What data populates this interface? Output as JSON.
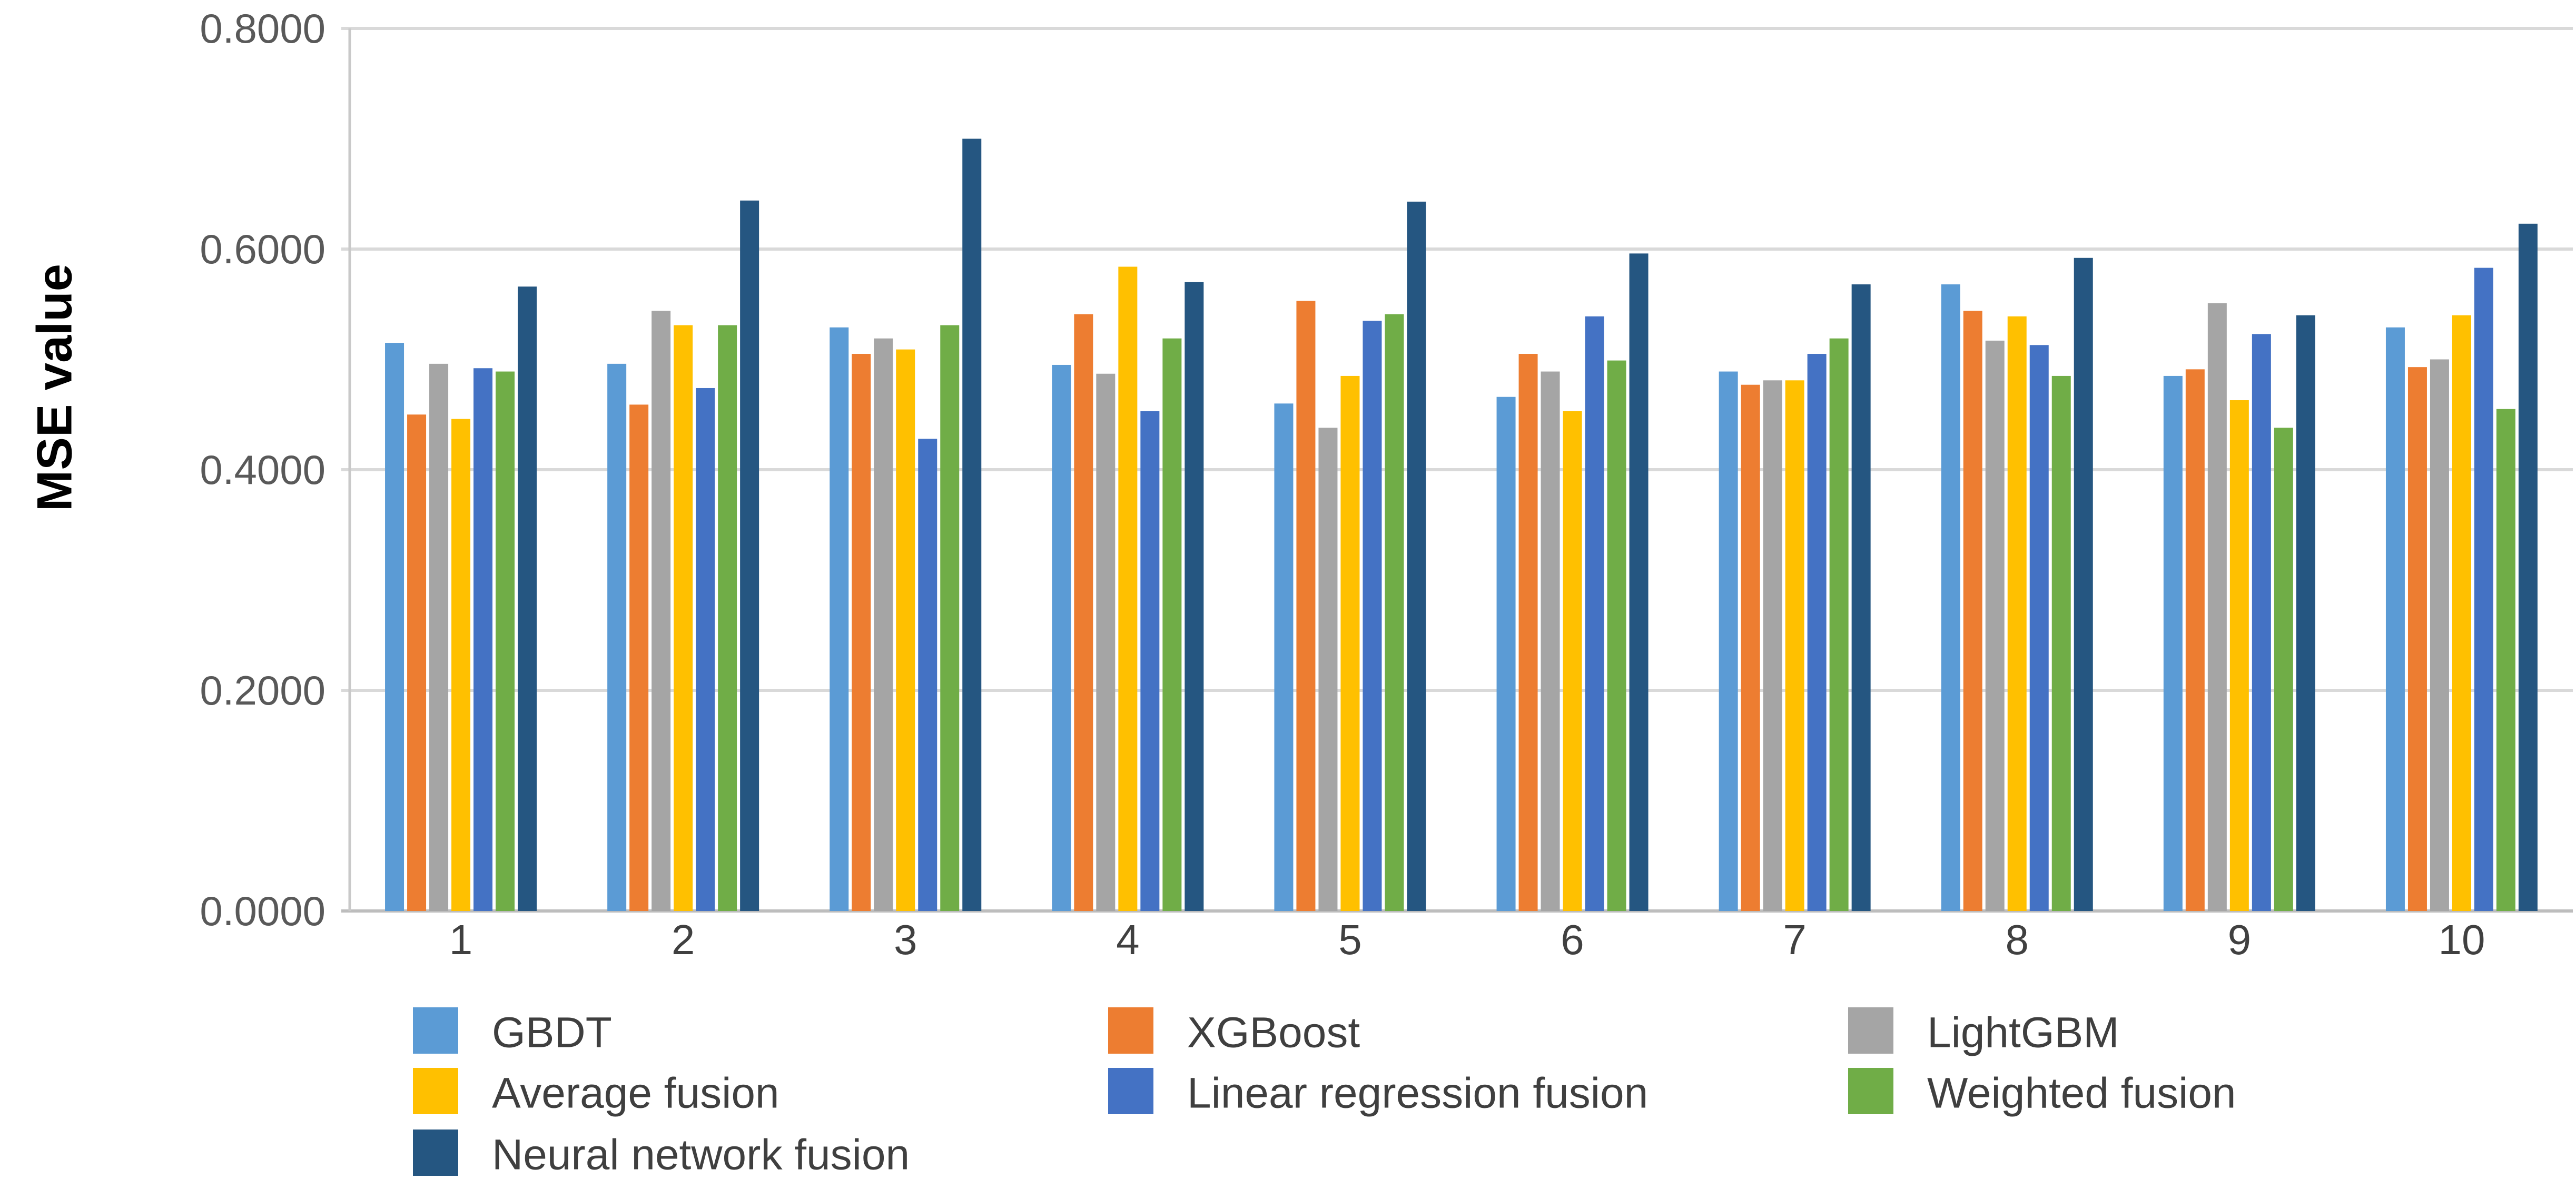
{
  "chart_data": {
    "type": "bar",
    "title": "",
    "xlabel": "",
    "ylabel": "MSE value",
    "ylim": [
      0.0,
      0.8
    ],
    "grid": true,
    "legend_position": "bottom",
    "axis_color": "#c9c9c9",
    "gridline_color": "#d9d9d9",
    "tick_label_color": "#595959",
    "xtick_label_color": "#404040",
    "ylabel_color": "#000000",
    "legend_text_color": "#3f3f3f",
    "ytick_values": [
      0.0,
      0.2,
      0.4,
      0.6,
      0.8
    ],
    "ytick_labels": [
      "0.0000",
      "0.2000",
      "0.4000",
      "0.6000",
      "0.8000"
    ],
    "categories": [
      "1",
      "2",
      "3",
      "4",
      "5",
      "6",
      "7",
      "8",
      "9",
      "10"
    ],
    "series": [
      {
        "name": "GBDT",
        "color": "#5B9BD5",
        "values": [
          0.515,
          0.496,
          0.529,
          0.495,
          0.46,
          0.466,
          0.489,
          0.568,
          0.485,
          0.529
        ]
      },
      {
        "name": "XGBoost",
        "color": "#ED7D31",
        "values": [
          0.45,
          0.459,
          0.505,
          0.541,
          0.553,
          0.505,
          0.477,
          0.544,
          0.491,
          0.493
        ]
      },
      {
        "name": "LightGBM",
        "color": "#A5A5A5",
        "values": [
          0.496,
          0.544,
          0.519,
          0.487,
          0.438,
          0.489,
          0.481,
          0.517,
          0.551,
          0.5
        ]
      },
      {
        "name": "Average fusion",
        "color": "#FFC000",
        "values": [
          0.446,
          0.531,
          0.509,
          0.584,
          0.485,
          0.453,
          0.481,
          0.539,
          0.463,
          0.54
        ]
      },
      {
        "name": "Linear regression fusion",
        "color": "#4472C4",
        "values": [
          0.492,
          0.474,
          0.428,
          0.453,
          0.535,
          0.539,
          0.505,
          0.513,
          0.523,
          0.583
        ]
      },
      {
        "name": "Weighted fusion",
        "color": "#70AD47",
        "values": [
          0.489,
          0.531,
          0.531,
          0.519,
          0.541,
          0.499,
          0.519,
          0.485,
          0.438,
          0.455
        ]
      },
      {
        "name": "Neural network fusion",
        "color": "#255681",
        "values": [
          0.566,
          0.644,
          0.7,
          0.57,
          0.643,
          0.596,
          0.568,
          0.592,
          0.54,
          0.623
        ]
      }
    ]
  }
}
